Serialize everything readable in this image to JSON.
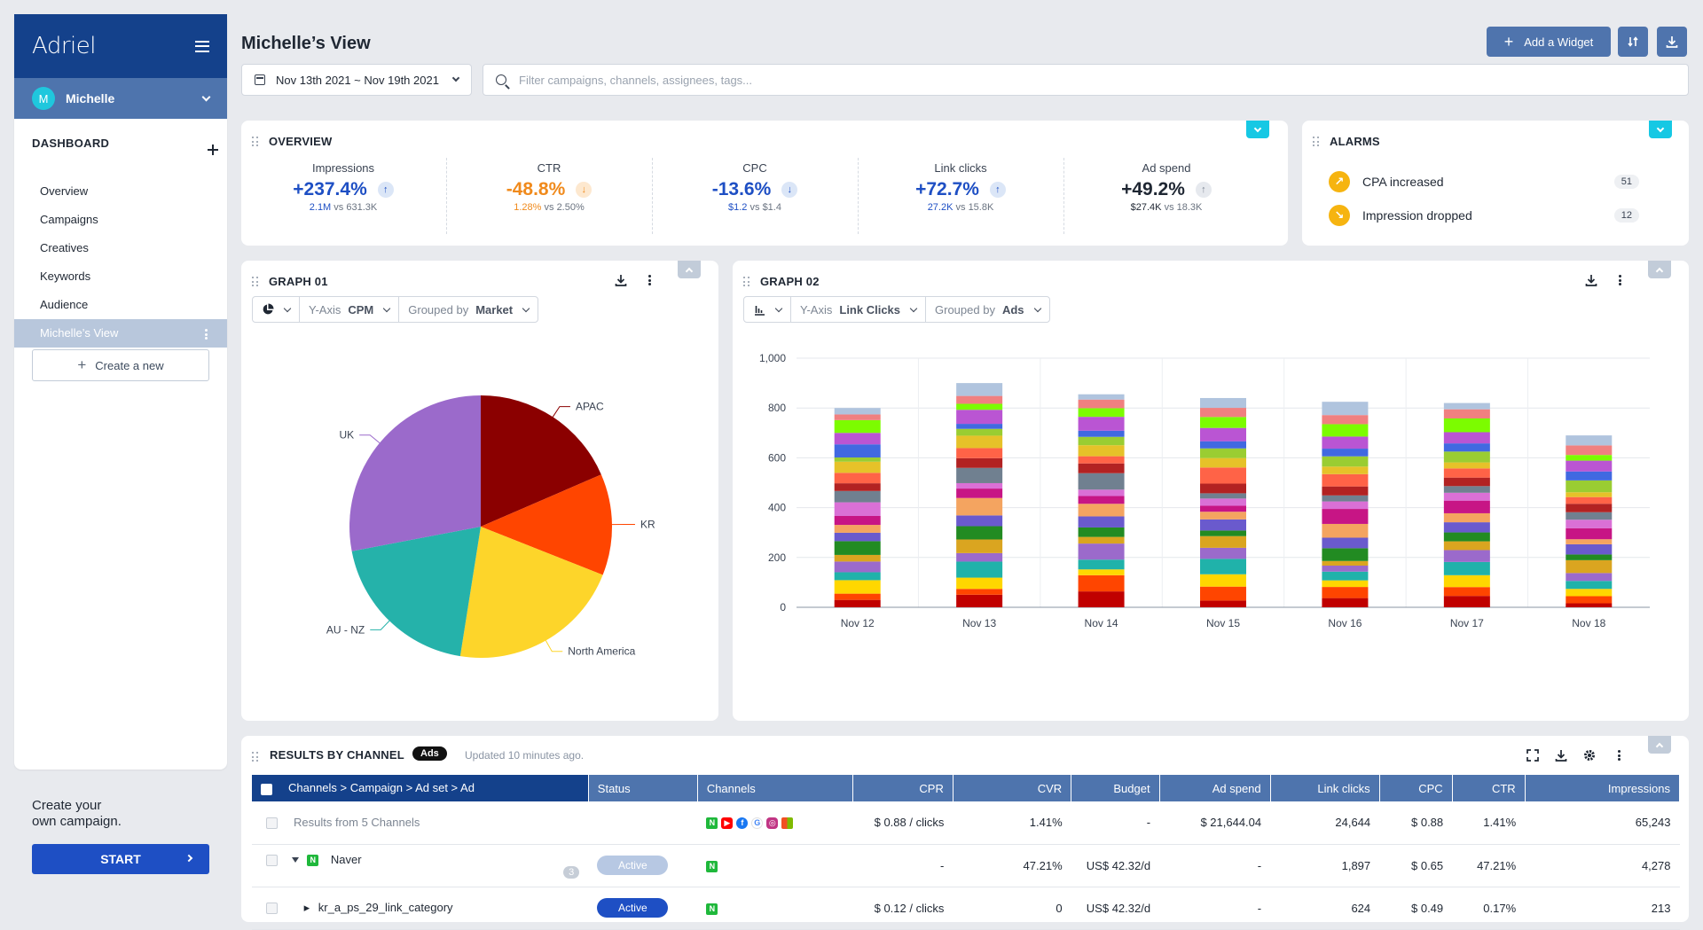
{
  "app": {
    "logo": "Adriel"
  },
  "user": {
    "initial": "M",
    "name": "Michelle"
  },
  "sidebar": {
    "section_title": "DASHBOARD",
    "items": [
      {
        "label": "Overview"
      },
      {
        "label": "Campaigns"
      },
      {
        "label": "Creatives"
      },
      {
        "label": "Keywords"
      },
      {
        "label": "Audience"
      },
      {
        "label": "Michelle’s View",
        "active": true
      }
    ],
    "create_new": "Create a new",
    "promo_line1": "Create your",
    "promo_line2": "own campaign.",
    "start_label": "START"
  },
  "header": {
    "title": "Michelle’s View",
    "date_range": "Nov 13th 2021 ~ Nov 19th 2021",
    "search_placeholder": "Filter campaigns, channels, assignees, tags...",
    "add_widget": "Add a Widget"
  },
  "overview": {
    "title": "OVERVIEW",
    "metrics": [
      {
        "label": "Impressions",
        "value": "+237.4%",
        "current": "2.1M",
        "vs": "vs",
        "previous": "631.3K",
        "color": "#1e4fc4",
        "arrow": "↑",
        "arrow_bg": "#dbe6f7",
        "arrow_color": "#1e4fc4"
      },
      {
        "label": "CTR",
        "value": "-48.8%",
        "current": "1.28%",
        "vs": "vs",
        "previous": "2.50%",
        "color": "#f08a1c",
        "arrow": "↓",
        "arrow_bg": "#fde8cf",
        "arrow_color": "#f08a1c"
      },
      {
        "label": "CPC",
        "value": "-13.6%",
        "current": "$1.2",
        "vs": "vs",
        "previous": "$1.4",
        "color": "#1e4fc4",
        "arrow": "↓",
        "arrow_bg": "#dbe6f7",
        "arrow_color": "#1e4fc4"
      },
      {
        "label": "Link clicks",
        "value": "+72.7%",
        "current": "27.2K",
        "vs": "vs",
        "previous": "15.8K",
        "color": "#1e4fc4",
        "arrow": "↑",
        "arrow_bg": "#dbe6f7",
        "arrow_color": "#1e4fc4"
      },
      {
        "label": "Ad spend",
        "value": "+49.2%",
        "current": "$27.4K",
        "vs": "vs",
        "previous": "18.3K",
        "color": "#1f2733",
        "arrow": "↑",
        "arrow_bg": "#e6e9ee",
        "arrow_color": "#7d8693"
      }
    ]
  },
  "alarms": {
    "title": "ALARMS",
    "items": [
      {
        "label": "CPA increased",
        "count": "51",
        "icon": "↗"
      },
      {
        "label": "Impression dropped",
        "count": "12",
        "icon": "↘"
      }
    ]
  },
  "graph1": {
    "title": "GRAPH 01",
    "yaxis_label": "Y-Axis",
    "yaxis_value": "CPM",
    "group_label": "Grouped by",
    "group_value": "Market"
  },
  "graph2": {
    "title": "GRAPH 02",
    "yaxis_label": "Y-Axis",
    "yaxis_value": "Link Clicks",
    "group_label": "Grouped by",
    "group_value": "Ads"
  },
  "chart_data": [
    {
      "type": "pie",
      "title": "",
      "slices": [
        {
          "label": "APAC",
          "value": 18.5,
          "color": "#8b0000"
        },
        {
          "label": "KR",
          "value": 12.5,
          "color": "#ff4500"
        },
        {
          "label": "North America",
          "value": 21.5,
          "color": "#fdd52a"
        },
        {
          "label": "AU - NZ",
          "value": 19.5,
          "color": "#25b2aa"
        },
        {
          "label": "UK",
          "value": 28.0,
          "color": "#9b6acb"
        }
      ]
    },
    {
      "type": "bar",
      "stacked": true,
      "title": "",
      "categories": [
        "Nov 12",
        "Nov 13",
        "Nov 14",
        "Nov 15",
        "Nov 16",
        "Nov 17",
        "Nov 18"
      ],
      "totals": [
        800,
        900,
        855,
        840,
        825,
        820,
        690
      ],
      "ylim": [
        0,
        1000
      ],
      "yticks": [
        "0",
        "200",
        "400",
        "600",
        "800",
        "1,000"
      ],
      "grid": true,
      "segment_colors": [
        "#c00000",
        "#ff4500",
        "#ffd700",
        "#20b2aa",
        "#9b6acb",
        "#daa520",
        "#228b22",
        "#6a5acd",
        "#f4a460",
        "#c71585",
        "#da70d6",
        "#708090",
        "#b22222",
        "#ff6347",
        "#e6c229",
        "#9acd32",
        "#4169e1",
        "#ba55d3",
        "#7cfc00",
        "#f08080",
        "#b0c4de"
      ]
    }
  ],
  "results": {
    "title": "RESULTS BY CHANNEL",
    "badge": "Ads",
    "updated": "Updated 10 minutes ago.",
    "columns": [
      "Channels > Campaign > Ad set > Ad",
      "Status",
      "Channels",
      "CPR",
      "CVR",
      "Budget",
      "Ad spend",
      "Link clicks",
      "CPC",
      "CTR",
      "Impressions"
    ],
    "rows": [
      {
        "name": "Results from 5 Channels",
        "status": "",
        "cpr": "$ 0.88 / clicks",
        "cvr": "1.41%",
        "budget": "-",
        "spend": "$ 21,644.04",
        "clicks": "24,644",
        "cpc": "$ 0.88",
        "ctr": "1.41%",
        "impressions": "65,243"
      },
      {
        "name": "Naver",
        "count": "3",
        "status": "Active",
        "cpr": "-",
        "cvr": "47.21%",
        "budget": "US$ 42.32/d",
        "spend": "-",
        "clicks": "1,897",
        "cpc": "$ 0.65",
        "ctr": "47.21%",
        "impressions": "4,278"
      },
      {
        "name": "kr_a_ps_29_link_category",
        "status": "Active",
        "cpr": "$ 0.12 / clicks",
        "cvr": "0",
        "budget": "US$ 42.32/d",
        "spend": "-",
        "clicks": "624",
        "cpc": "$ 0.49",
        "ctr": "0.17%",
        "impressions": "213"
      }
    ]
  }
}
